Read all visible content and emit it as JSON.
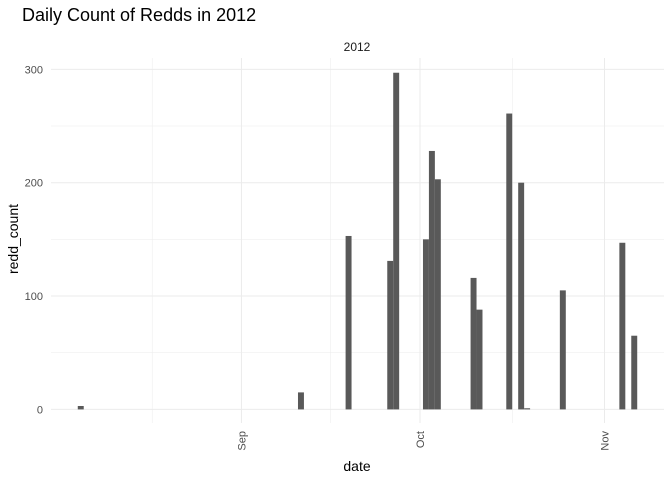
{
  "chart_data": {
    "type": "bar",
    "title": "Daily Count of Redds in 2012",
    "facet": "2012",
    "xlabel": "date",
    "ylabel": "redd_count",
    "x_ticks": [
      {
        "date": "2012-09-01",
        "label": "Sep"
      },
      {
        "date": "2012-10-01",
        "label": "Oct"
      },
      {
        "date": "2012-11-01",
        "label": "Nov"
      }
    ],
    "y_ticks": [
      0,
      100,
      200,
      300
    ],
    "xlim": [
      "2012-07-31",
      "2012-11-11"
    ],
    "ylim": [
      -12,
      310
    ],
    "bars": [
      {
        "date": "2012-08-05",
        "value": 3
      },
      {
        "date": "2012-09-11",
        "value": 15
      },
      {
        "date": "2012-09-19",
        "value": 153
      },
      {
        "date": "2012-09-26",
        "value": 131
      },
      {
        "date": "2012-09-27",
        "value": 297
      },
      {
        "date": "2012-10-02",
        "value": 150
      },
      {
        "date": "2012-10-03",
        "value": 228
      },
      {
        "date": "2012-10-04",
        "value": 203
      },
      {
        "date": "2012-10-10",
        "value": 116
      },
      {
        "date": "2012-10-11",
        "value": 88
      },
      {
        "date": "2012-10-16",
        "value": 261
      },
      {
        "date": "2012-10-18",
        "value": 200
      },
      {
        "date": "2012-10-19",
        "value": 1
      },
      {
        "date": "2012-10-25",
        "value": 105
      },
      {
        "date": "2012-11-04",
        "value": 147
      },
      {
        "date": "2012-11-06",
        "value": 65
      }
    ],
    "grid": true,
    "bar_color": "#595959",
    "grid_color": "#ebebeb"
  }
}
